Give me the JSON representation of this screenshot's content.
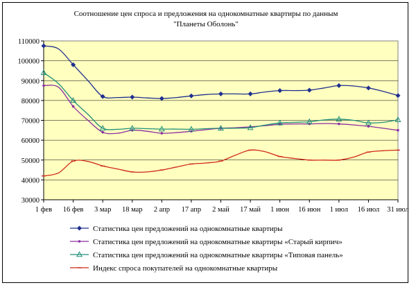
{
  "chart_data": {
    "type": "line",
    "title": "Соотношение цен спроса и предложения на однокомнатные квартиры по данным \"Планеты Оболонь\"",
    "title_lines": [
      "Соотношение цен спроса и предложения на однокомнатные квартиры по данным",
      "\"Планеты Оболонь\""
    ],
    "xlabel": "",
    "ylabel": "",
    "categories": [
      "1 фев",
      "16 фев",
      "3 мар",
      "18 мар",
      "2 апр",
      "17 апр",
      "2 май",
      "17 май",
      "1 июн",
      "16 июн",
      "1 июл",
      "16 июл",
      "31 июл"
    ],
    "ylim": [
      30000,
      110000
    ],
    "yticks": [
      30000,
      40000,
      50000,
      60000,
      70000,
      80000,
      90000,
      100000,
      110000
    ],
    "grid": true,
    "legend_position": "bottom",
    "plot_background": "#ffffc0",
    "series": [
      {
        "name": "Статистика цен предложений на однокомнатные квартиры",
        "color": "#1f2f8f",
        "marker": "diamond",
        "x": [
          0,
          0.5,
          1,
          1.5,
          2,
          2.5,
          3,
          3.5,
          4,
          4.5,
          5,
          5.5,
          6,
          6.5,
          7,
          7.5,
          8,
          8.5,
          9,
          9.5,
          10,
          10.5,
          11,
          11.5,
          12
        ],
        "values": [
          107500,
          106000,
          98000,
          90000,
          82000,
          81500,
          81700,
          81300,
          81000,
          81500,
          82300,
          83000,
          83300,
          83300,
          83300,
          84300,
          85000,
          85000,
          85200,
          86300,
          87500,
          87300,
          86300,
          84600,
          82500
        ]
      },
      {
        "name": "Статистика цен предложений на однокомнатные квартиры «Старый кирпич»",
        "color": "#8b2fa0",
        "marker": "dot",
        "x": [
          0,
          0.5,
          1,
          1.5,
          2,
          2.5,
          3,
          3.5,
          4,
          4.5,
          5,
          5.5,
          6,
          6.5,
          7,
          7.5,
          8,
          8.5,
          9,
          9.5,
          10,
          10.5,
          11,
          11.5,
          12
        ],
        "values": [
          87500,
          86700,
          77000,
          70000,
          64000,
          63500,
          65000,
          64500,
          63500,
          63800,
          64500,
          65300,
          66000,
          66300,
          66700,
          67300,
          68000,
          68200,
          68200,
          68400,
          68200,
          67700,
          67000,
          66000,
          65000
        ]
      },
      {
        "name": "Статистика цен предложений на однокомнатные квартиры «Типовая панель»",
        "color": "#1f8f7a",
        "marker": "triangle",
        "x": [
          0,
          0.5,
          1,
          1.5,
          2,
          2.5,
          3,
          3.5,
          4,
          4.5,
          5,
          5.5,
          6,
          6.5,
          7,
          7.5,
          8,
          8.5,
          9,
          9.5,
          10,
          10.5,
          11,
          11.5,
          12
        ],
        "values": [
          94000,
          88500,
          80000,
          73000,
          66000,
          65500,
          66000,
          65800,
          65600,
          65600,
          65500,
          65800,
          66000,
          66000,
          66300,
          67600,
          68700,
          69000,
          69300,
          70200,
          70600,
          70000,
          68700,
          69000,
          70300
        ]
      },
      {
        "name": "Индекс спроса покупателей на однокомнатные квартиры",
        "color": "#d02818",
        "marker": "dash",
        "x": [
          0,
          0.5,
          1,
          1.5,
          2,
          2.5,
          3,
          3.5,
          4,
          4.5,
          5,
          5.5,
          6,
          6.5,
          7,
          7.5,
          8,
          8.5,
          9,
          9.5,
          10,
          10.5,
          11,
          11.5,
          12
        ],
        "values": [
          42000,
          43500,
          49500,
          49300,
          47000,
          45500,
          44000,
          44000,
          45000,
          46500,
          48000,
          48500,
          49500,
          52500,
          55000,
          54200,
          51800,
          50800,
          50000,
          50000,
          50000,
          51500,
          54000,
          54700,
          55000
        ]
      }
    ]
  }
}
